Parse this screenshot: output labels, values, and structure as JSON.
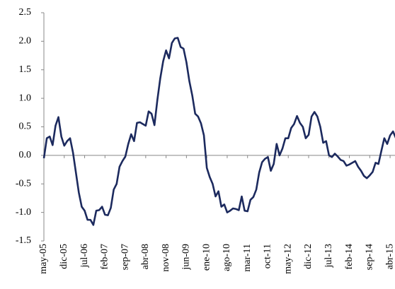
{
  "chart_data": {
    "type": "line",
    "color": "#1c2a5e",
    "categories": [
      "may-05",
      null,
      null,
      null,
      null,
      null,
      null,
      "dic-05",
      null,
      null,
      null,
      null,
      null,
      null,
      "jul-06",
      null,
      null,
      null,
      null,
      null,
      null,
      "feb-07",
      null,
      null,
      null,
      null,
      null,
      null,
      "sep-07",
      null,
      null,
      null,
      null,
      null,
      null,
      "abr-08",
      null,
      null,
      null,
      null,
      null,
      null,
      "nov-08",
      null,
      null,
      null,
      null,
      null,
      null,
      "jun-09",
      null,
      null,
      null,
      null,
      null,
      null,
      "ene-10",
      null,
      null,
      null,
      null,
      null,
      null,
      "ago-10",
      null,
      null,
      null,
      null,
      null,
      null,
      "mar-11",
      null,
      null,
      null,
      null,
      null,
      null,
      "oct-11",
      null,
      null,
      null,
      null,
      null,
      null,
      "may-12",
      null,
      null,
      null,
      null,
      null,
      null,
      "dic-12",
      null,
      null,
      null,
      null,
      null,
      null,
      "jul-13",
      null,
      null,
      null,
      null,
      null,
      null,
      "feb-14",
      null,
      null,
      null,
      null,
      null,
      null,
      "sep-14",
      null,
      null,
      null,
      null,
      null,
      null,
      "abr-15",
      null,
      null
    ],
    "values": [
      -0.05,
      0.3,
      0.33,
      0.18,
      0.52,
      0.67,
      0.33,
      0.17,
      0.25,
      0.3,
      0.05,
      -0.3,
      -0.65,
      -0.9,
      -0.97,
      -1.13,
      -1.13,
      -1.22,
      -0.97,
      -0.96,
      -0.9,
      -1.04,
      -1.05,
      -0.92,
      -0.6,
      -0.5,
      -0.2,
      -0.1,
      -0.02,
      0.2,
      0.37,
      0.25,
      0.57,
      0.58,
      0.55,
      0.52,
      0.77,
      0.73,
      0.53,
      0.97,
      1.35,
      1.65,
      1.84,
      1.7,
      1.97,
      2.05,
      2.06,
      1.9,
      1.87,
      1.63,
      1.3,
      1.05,
      0.73,
      0.68,
      0.56,
      0.35,
      -0.22,
      -0.38,
      -0.5,
      -0.72,
      -0.63,
      -0.9,
      -0.86,
      -1.0,
      -0.97,
      -0.93,
      -0.94,
      -0.96,
      -0.72,
      -0.97,
      -0.98,
      -0.78,
      -0.73,
      -0.6,
      -0.3,
      -0.12,
      -0.06,
      -0.03,
      -0.27,
      -0.15,
      0.2,
      0.0,
      0.12,
      0.3,
      0.3,
      0.48,
      0.55,
      0.69,
      0.57,
      0.5,
      0.3,
      0.36,
      0.68,
      0.76,
      0.68,
      0.5,
      0.22,
      0.25,
      0.0,
      -0.03,
      0.03,
      -0.02,
      -0.08,
      -0.1,
      -0.18,
      -0.16,
      -0.13,
      -0.1,
      -0.2,
      -0.27,
      -0.36,
      -0.4,
      -0.35,
      -0.29,
      -0.13,
      -0.15,
      0.08,
      0.3,
      0.2,
      0.35,
      0.42,
      0.3
    ],
    "ylim": [
      -1.5,
      2.5
    ],
    "yticks": [
      {
        "value": -1.5,
        "label": "-1.5"
      },
      {
        "value": -1,
        "label": "-1.0"
      },
      {
        "value": -0.5,
        "label": "-0.5"
      },
      {
        "value": 0,
        "label": "0.0"
      },
      {
        "value": 0.5,
        "label": "0.5"
      },
      {
        "value": 1,
        "label": "1.0"
      },
      {
        "value": 1.5,
        "label": "1.5"
      },
      {
        "value": 2,
        "label": "2.0"
      },
      {
        "value": 2.5,
        "label": "2.5"
      }
    ],
    "grid": false
  }
}
